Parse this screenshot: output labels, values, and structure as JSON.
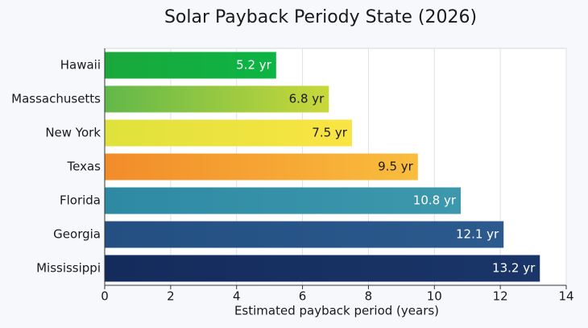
{
  "chart_data": {
    "type": "barh",
    "title": "Solar Payback Periody State (2026)",
    "categories": [
      "Hawaii",
      "Massachusetts",
      "New York",
      "Texas",
      "Florida",
      "Georgia",
      "Mississippi"
    ],
    "values": [
      5.2,
      6.8,
      7.5,
      9.5,
      10.8,
      12.1,
      13.2
    ],
    "value_labels": [
      "5.2 yr",
      "6.8 yr",
      "7.5 yr",
      "9.5 yr",
      "10.8 yr",
      "12.1 yr",
      "13.2 yr"
    ],
    "colors": [
      [
        "#1aa83c",
        "#0cb544"
      ],
      [
        "#62b84a",
        "#c9d83a"
      ],
      [
        "#dfe23c",
        "#fae443"
      ],
      [
        "#f28c2a",
        "#f9bd3d"
      ],
      [
        "#2e8aa3",
        "#3d98ad"
      ],
      [
        "#234f82",
        "#2c5a8e"
      ],
      [
        "#142c5c",
        "#1a3568"
      ]
    ],
    "label_colors": [
      "#ffffff",
      "#1a1a1a",
      "#1a1a1a",
      "#1a1a1a",
      "#ffffff",
      "#ffffff",
      "#ffffff"
    ],
    "xlabel": "Estimated payback period (years)",
    "xlim": [
      0,
      14
    ],
    "xticks": [
      0,
      2,
      4,
      6,
      8,
      10,
      12,
      14
    ],
    "grid": true
  }
}
